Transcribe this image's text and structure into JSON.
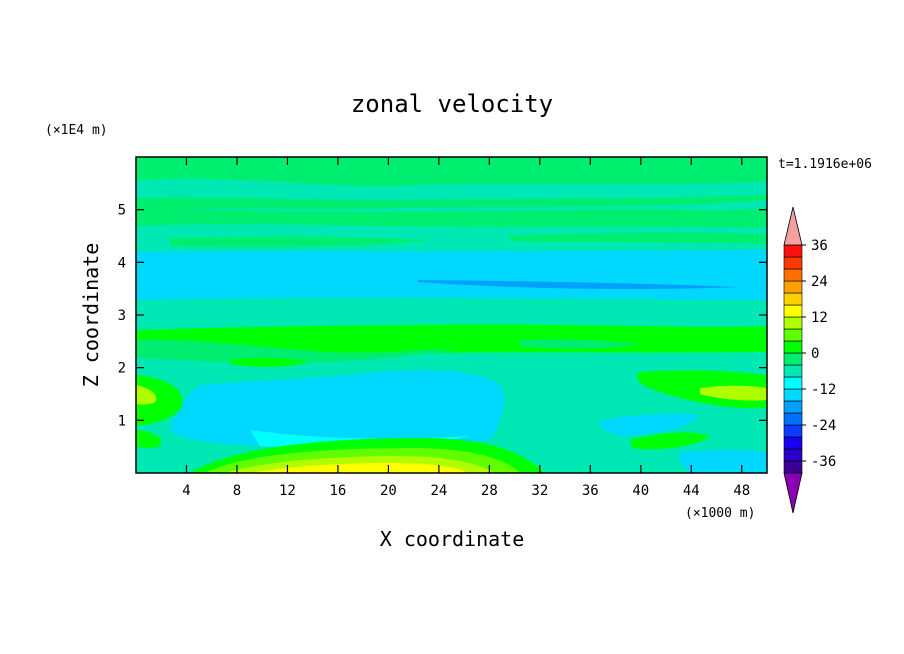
{
  "chart_data": {
    "type": "heatmap",
    "title": "zonal velocity",
    "xlabel": "X coordinate",
    "ylabel": "Z coordinate",
    "x_unit": "(×1000 m)",
    "y_unit": "(×1E4 m)",
    "time_label": "t=1.1916e+06",
    "xlim": [
      0,
      50
    ],
    "ylim": [
      0,
      6
    ],
    "x_ticks": [
      4,
      8,
      12,
      16,
      20,
      24,
      28,
      32,
      36,
      40,
      44,
      48
    ],
    "y_ticks": [
      1,
      2,
      3,
      4,
      5
    ],
    "colorbar": {
      "levels": [
        -40,
        -36,
        -32,
        -28,
        -24,
        -20,
        -16,
        -12,
        -8,
        -4,
        0,
        4,
        8,
        12,
        16,
        20,
        24,
        28,
        32,
        36,
        40
      ],
      "tick_values": [
        36,
        24,
        12,
        0,
        -12,
        -24,
        -36
      ],
      "colors": [
        "#8b00b5",
        "#3d0096",
        "#2a00c8",
        "#1a00f0",
        "#0a3cff",
        "#0070ff",
        "#00a0ff",
        "#00d8ff",
        "#00ffff",
        "#00e8b4",
        "#00ee70",
        "#00ff00",
        "#60ff00",
        "#b0ff00",
        "#ffff00",
        "#ffd000",
        "#ffa000",
        "#ff7000",
        "#ff3a00",
        "#ff1010",
        "#f4a0a0"
      ],
      "extend": "both"
    },
    "regions": [
      {
        "level": 0,
        "description": "light green band near top",
        "z_range": [
          5.2,
          5.8
        ]
      },
      {
        "level": -4,
        "description": "teal band",
        "z_range": [
          4.4,
          4.8
        ]
      },
      {
        "level": -12,
        "description": "cyan band",
        "z_range": [
          3.4,
          4.2
        ]
      },
      {
        "level": -16,
        "description": "blue streak",
        "x_range": [
          27,
          47
        ],
        "z_range": [
          3.5,
          3.7
        ]
      },
      {
        "level": 4,
        "description": "green band",
        "z_range": [
          2.3,
          2.8
        ]
      },
      {
        "level": -12,
        "description": "cyan region",
        "x_range": [
          4,
          28
        ],
        "z_range": [
          0.5,
          1.9
        ]
      },
      {
        "level": 16,
        "description": "yellow surface maximum",
        "x_range": [
          10,
          30
        ],
        "z_range": [
          0,
          0.3
        ]
      },
      {
        "level": 12,
        "description": "yellow-green patch",
        "x_range": [
          44,
          50
        ],
        "z_range": [
          1.3,
          1.8
        ]
      }
    ]
  }
}
